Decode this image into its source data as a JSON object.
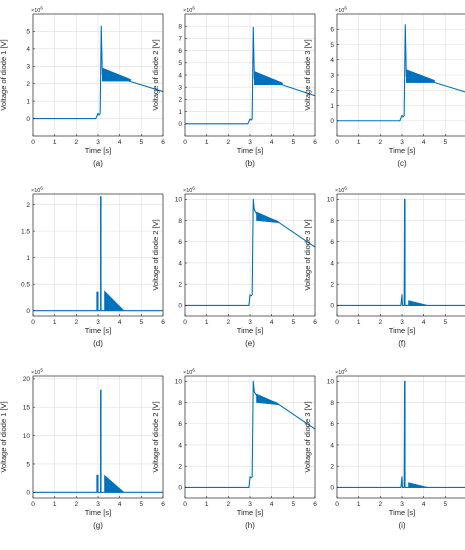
{
  "colors": {
    "series": "#0072bd",
    "axis": "#262626",
    "grid": "#dfdfdf",
    "background": "#ffffff"
  },
  "chart_data": [
    {
      "id": "a",
      "caption": "(a)",
      "type": "line",
      "xlabel": "Time [s]",
      "ylabel": "Voltage of diode 1 [V]",
      "exponent": "6",
      "xlim": [
        0,
        6
      ],
      "ylim": [
        -1,
        6
      ],
      "xticks": [
        0,
        1,
        2,
        3,
        4,
        5,
        6
      ],
      "yticks": [
        0,
        1,
        2,
        3,
        4,
        5
      ],
      "grid": true,
      "series": [
        {
          "x": [
            0,
            2.9,
            3.0,
            3.05,
            3.1,
            3.15,
            3.2,
            3.3,
            4.3,
            6.0
          ],
          "y": [
            0,
            0,
            0.3,
            0.2,
            0.3,
            5.3,
            2.5,
            2.4,
            2.2,
            1.55
          ]
        }
      ],
      "band": {
        "x": [
          3.2,
          4.5
        ],
        "top": [
          2.9,
          2.25
        ],
        "bottom": [
          2.15,
          2.15
        ]
      }
    },
    {
      "id": "b",
      "caption": "(b)",
      "type": "line",
      "xlabel": "Time [s]",
      "ylabel": "Voltage of diode 2 [V]",
      "exponent": "6",
      "xlim": [
        0,
        6
      ],
      "ylim": [
        -1,
        9
      ],
      "xticks": [
        0,
        1,
        2,
        3,
        4,
        5,
        6
      ],
      "yticks": [
        0,
        1,
        2,
        3,
        4,
        5,
        6,
        7,
        8
      ],
      "grid": true,
      "series": [
        {
          "x": [
            0,
            2.9,
            3.0,
            3.05,
            3.1,
            3.15,
            3.2,
            3.3,
            4.3,
            6.0
          ],
          "y": [
            0,
            0,
            0.4,
            0.3,
            0.4,
            7.9,
            3.7,
            3.6,
            3.3,
            2.3
          ]
        }
      ],
      "band": {
        "x": [
          3.2,
          4.5
        ],
        "top": [
          4.3,
          3.35
        ],
        "bottom": [
          3.2,
          3.2
        ]
      }
    },
    {
      "id": "c",
      "caption": "(c)",
      "type": "line",
      "xlabel": "Time [s]",
      "ylabel": "Voltage of diode 3 [V]",
      "exponent": "6",
      "xlim": [
        0,
        6
      ],
      "ylim": [
        -1,
        7
      ],
      "xticks": [
        0,
        1,
        2,
        3,
        4,
        5,
        6
      ],
      "yticks": [
        0,
        1,
        2,
        3,
        4,
        5,
        6
      ],
      "grid": true,
      "series": [
        {
          "x": [
            0,
            2.9,
            3.0,
            3.05,
            3.1,
            3.15,
            3.2,
            3.3,
            4.3,
            6.0
          ],
          "y": [
            0,
            0,
            0.35,
            0.25,
            0.35,
            6.3,
            2.9,
            2.85,
            2.6,
            1.85
          ]
        }
      ],
      "band": {
        "x": [
          3.2,
          4.5
        ],
        "top": [
          3.35,
          2.65
        ],
        "bottom": [
          2.5,
          2.5
        ]
      }
    },
    {
      "id": "d",
      "caption": "(d)",
      "type": "line",
      "xlabel": "Time [s]",
      "ylabel": "",
      "exponent": "6",
      "xlim": [
        0,
        6
      ],
      "ylim": [
        -0.1,
        2.2
      ],
      "xticks": [
        0,
        1,
        2,
        3,
        4,
        5,
        6
      ],
      "yticks": [
        0,
        0.5,
        1,
        1.5,
        2
      ],
      "ytick_labels": [
        "0",
        "0.5",
        "1",
        "1.5",
        "2"
      ],
      "grid": true,
      "series": [
        {
          "x": [
            0,
            2.95,
            2.95,
            3.0,
            3.0,
            3.12,
            3.12,
            3.14,
            3.14,
            6.0
          ],
          "y": [
            0,
            0,
            0.35,
            0.35,
            0,
            0,
            2.15,
            2.15,
            0,
            0
          ]
        }
      ],
      "band": {
        "x": [
          3.3,
          4.2
        ],
        "top": [
          0.37,
          0.0
        ],
        "bottom": [
          0,
          0
        ]
      }
    },
    {
      "id": "e",
      "caption": "(e)",
      "type": "line",
      "xlabel": "Time [s]",
      "ylabel": "Voltage of diode 2 [V]",
      "exponent": "6",
      "xlim": [
        0,
        6
      ],
      "ylim": [
        -1,
        10.5
      ],
      "xticks": [
        0,
        1,
        2,
        3,
        4,
        5,
        6
      ],
      "yticks": [
        0,
        2,
        4,
        6,
        8,
        10
      ],
      "grid": true,
      "series": [
        {
          "x": [
            0,
            2.95,
            3.0,
            3.05,
            3.1,
            3.15,
            3.2,
            3.35,
            4.2,
            6.0
          ],
          "y": [
            0,
            0,
            1.0,
            0.9,
            1.0,
            10.0,
            9.0,
            8.5,
            8.0,
            5.5
          ]
        }
      ],
      "band": {
        "x": [
          3.3,
          4.3
        ],
        "top": [
          8.8,
          7.9
        ],
        "bottom": [
          8.0,
          7.8
        ]
      }
    },
    {
      "id": "f",
      "caption": "(f)",
      "type": "line",
      "xlabel": "Time [s]",
      "ylabel": "Voltage of diode 3 [V]",
      "exponent": "6",
      "xlim": [
        0,
        6
      ],
      "ylim": [
        -1,
        10.5
      ],
      "xticks": [
        0,
        1,
        2,
        3,
        4,
        5,
        6
      ],
      "yticks": [
        0,
        2,
        4,
        6,
        8,
        10
      ],
      "grid": true,
      "series": [
        {
          "x": [
            0,
            2.95,
            3.0,
            3.02,
            3.05,
            3.1,
            3.12,
            3.14,
            3.14,
            6.0
          ],
          "y": [
            0,
            0,
            1.0,
            0,
            0,
            0,
            10.0,
            10.0,
            0,
            0
          ]
        }
      ],
      "band": {
        "x": [
          3.3,
          4.2
        ],
        "top": [
          0.45,
          0.0
        ],
        "bottom": [
          0,
          0
        ]
      }
    },
    {
      "id": "g",
      "caption": "(g)",
      "type": "line",
      "xlabel": "Time [s]",
      "ylabel": "Voltage of diode 1 [V]",
      "exponent": "5",
      "xlim": [
        0,
        6
      ],
      "ylim": [
        -1,
        20.5
      ],
      "xticks": [
        0,
        1,
        2,
        3,
        4,
        5,
        6
      ],
      "yticks": [
        0,
        5,
        10,
        15,
        20
      ],
      "grid": true,
      "series": [
        {
          "x": [
            0,
            2.95,
            2.95,
            3.0,
            3.0,
            3.12,
            3.12,
            3.14,
            3.14,
            6.0
          ],
          "y": [
            0,
            0,
            3.0,
            3.0,
            0,
            0,
            18.0,
            18.0,
            0,
            0
          ]
        }
      ],
      "band": {
        "x": [
          3.3,
          4.2
        ],
        "top": [
          3.0,
          0.0
        ],
        "bottom": [
          0,
          0
        ]
      }
    },
    {
      "id": "h",
      "caption": "(h)",
      "type": "line",
      "xlabel": "Time [s]",
      "ylabel": "Voltage of diode 2 [V]",
      "exponent": "6",
      "xlim": [
        0,
        6
      ],
      "ylim": [
        -1,
        10.5
      ],
      "xticks": [
        0,
        1,
        2,
        3,
        4,
        5,
        6
      ],
      "yticks": [
        0,
        2,
        4,
        6,
        8,
        10
      ],
      "grid": true,
      "series": [
        {
          "x": [
            0,
            2.95,
            3.0,
            3.05,
            3.1,
            3.15,
            3.2,
            3.35,
            4.2,
            6.0
          ],
          "y": [
            0,
            0,
            1.0,
            0.9,
            1.0,
            10.0,
            9.0,
            8.5,
            8.0,
            5.5
          ]
        }
      ],
      "band": {
        "x": [
          3.3,
          4.3
        ],
        "top": [
          8.8,
          7.9
        ],
        "bottom": [
          8.0,
          7.8
        ]
      }
    },
    {
      "id": "i",
      "caption": "(i)",
      "type": "line",
      "xlabel": "Time [s]",
      "ylabel": "Voltage of diode 3 [V]",
      "exponent": "6",
      "xlim": [
        0,
        6
      ],
      "ylim": [
        -1,
        10.5
      ],
      "xticks": [
        0,
        1,
        2,
        3,
        4,
        5,
        6
      ],
      "yticks": [
        0,
        2,
        4,
        6,
        8,
        10
      ],
      "grid": true,
      "series": [
        {
          "x": [
            0,
            2.95,
            3.0,
            3.02,
            3.05,
            3.1,
            3.12,
            3.14,
            3.14,
            6.0
          ],
          "y": [
            0,
            0,
            1.0,
            0,
            0,
            0,
            10.0,
            10.0,
            0,
            0
          ]
        }
      ],
      "band": {
        "x": [
          3.3,
          4.2
        ],
        "top": [
          0.45,
          0.0
        ],
        "bottom": [
          0,
          0
        ]
      }
    }
  ]
}
